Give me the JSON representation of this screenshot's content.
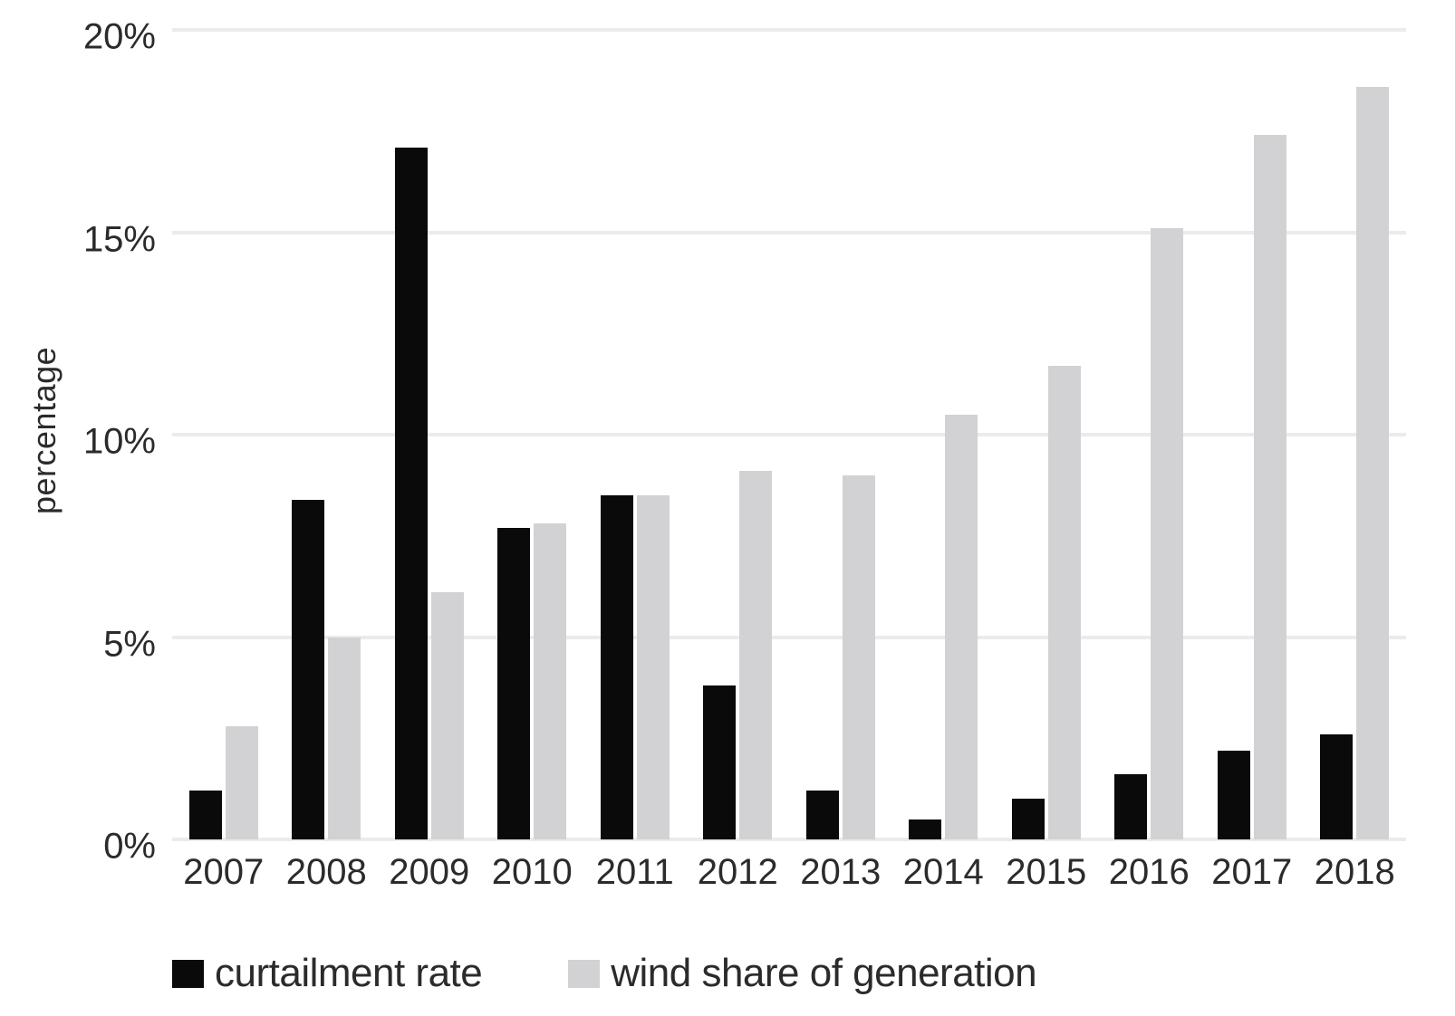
{
  "figure": {
    "background": "#ffffff",
    "text_color": "#2b2b2b",
    "gridline_color": "#ebebeb"
  },
  "chart_data": {
    "type": "bar",
    "title": "",
    "xlabel": "",
    "ylabel": "percentage",
    "categories": [
      "2007",
      "2008",
      "2009",
      "2010",
      "2011",
      "2012",
      "2013",
      "2014",
      "2015",
      "2016",
      "2017",
      "2018"
    ],
    "series": [
      {
        "name": "curtailment rate",
        "color": "#0a0a0a",
        "values": [
          1.2,
          8.4,
          17.1,
          7.7,
          8.5,
          3.8,
          1.2,
          0.5,
          1.0,
          1.6,
          2.2,
          2.6
        ]
      },
      {
        "name": "wind share of generation",
        "color": "#d2d2d4",
        "values": [
          2.8,
          5.0,
          6.1,
          7.8,
          8.5,
          9.1,
          9.0,
          10.5,
          11.7,
          15.1,
          17.4,
          18.6
        ]
      }
    ],
    "ylim": [
      0,
      20
    ],
    "ytick_step": 5,
    "yticks": [
      "0%",
      "5%",
      "10%",
      "15%",
      "20%"
    ],
    "grid": true,
    "legend_position": "bottom-left"
  }
}
